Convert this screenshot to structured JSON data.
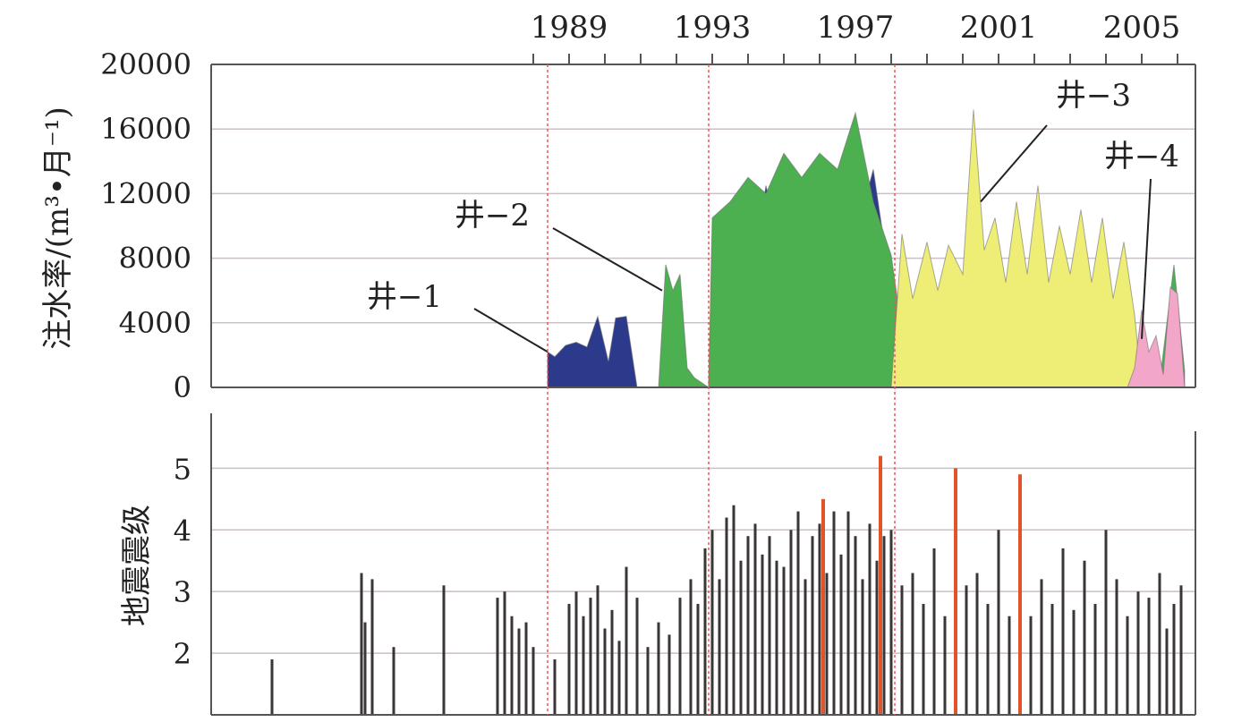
{
  "chart_data": [
    {
      "type": "area",
      "ylabel": "注水率/(m³•月⁻¹)",
      "xlabel": "",
      "x_ticks": [
        "1989",
        "1993",
        "1997",
        "2001",
        "2005"
      ],
      "ylim": [
        0,
        20000
      ],
      "yticks": [
        "0",
        "4000",
        "8000",
        "12000",
        "16000",
        "20000"
      ],
      "grid": true,
      "event_lines": [
        1988.4,
        1992.9,
        1998.1
      ],
      "series": [
        {
          "name": "井−1",
          "color": "#2b3a8a",
          "x": [
            1988.4,
            1988.6,
            1988.9,
            1989.2,
            1989.5,
            1989.8,
            1990.1,
            1990.3,
            1990.6,
            1990.9,
            1991.1,
            1991.4,
            1991.6,
            1991.7,
            1991.8,
            1991.9,
            1992.1,
            1992.3,
            1992.4,
            1992.9,
            1993.0,
            1993.3,
            1993.6,
            1993.9,
            1994.2,
            1994.5,
            1994.8,
            1995.1,
            1995.4,
            1995.7,
            1996.0,
            1996.3,
            1996.6,
            1996.9,
            1997.2,
            1997.5,
            1997.8,
            1998.1,
            1998.3,
            1998.6,
            1998.9,
            1999.2,
            1999.5,
            1999.8,
            2000.1,
            2000.4,
            2000.7,
            2001.0,
            2001.3
          ],
          "values": [
            2200,
            1900,
            2600,
            2800,
            2500,
            4400,
            1600,
            4300,
            4400,
            0,
            0,
            0,
            0,
            5000,
            6800,
            4500,
            800,
            0,
            0,
            0,
            9300,
            10000,
            9000,
            12000,
            8000,
            12500,
            9500,
            13000,
            11000,
            12800,
            10000,
            13500,
            11000,
            14500,
            11000,
            13500,
            9000,
            1500,
            2500,
            1200,
            3000,
            800,
            2200,
            600,
            2800,
            400,
            1500,
            200,
            0
          ]
        },
        {
          "name": "井−2",
          "color": "#4caf50",
          "x": [
            1988.4,
            1989.0,
            1990.0,
            1991.0,
            1991.5,
            1991.7,
            1991.9,
            1992.1,
            1992.3,
            1992.5,
            1992.7,
            1992.9,
            1993.0,
            1993.5,
            1994.0,
            1994.5,
            1995.0,
            1995.5,
            1996.0,
            1996.5,
            1997.0,
            1997.5,
            1998.0,
            1998.3,
            1998.6,
            1999.0,
            1999.5,
            2000.0,
            2000.5,
            2001.0,
            2001.5,
            2002.0,
            2002.5,
            2003.0,
            2003.5,
            2004.0,
            2004.5,
            2005.0,
            2005.5,
            2005.9,
            2006.2
          ],
          "values": [
            0,
            0,
            0,
            0,
            0,
            7600,
            6000,
            7000,
            1200,
            600,
            300,
            0,
            10500,
            11500,
            13000,
            12000,
            14500,
            13000,
            14500,
            13500,
            17000,
            11500,
            8200,
            3500,
            4500,
            3000,
            4500,
            3500,
            2500,
            1500,
            1200,
            1800,
            700,
            600,
            800,
            600,
            500,
            700,
            300,
            7600,
            1000
          ]
        },
        {
          "name": "井−3",
          "color": "#eeee77",
          "x": [
            1998.0,
            1998.3,
            1998.6,
            1999.0,
            1999.3,
            1999.6,
            2000.0,
            2000.3,
            2000.6,
            2000.9,
            2001.2,
            2001.5,
            2001.8,
            2002.1,
            2002.4,
            2002.7,
            2003.0,
            2003.3,
            2003.6,
            2003.9,
            2004.2,
            2004.5,
            2004.8,
            2005.0
          ],
          "values": [
            0,
            9500,
            5500,
            9000,
            6000,
            8800,
            7000,
            17200,
            8500,
            10500,
            6500,
            11500,
            7000,
            12500,
            6500,
            10000,
            7000,
            11000,
            6500,
            10500,
            5500,
            9000,
            4500,
            0
          ]
        },
        {
          "name": "井−4",
          "color": "#f2a6c8",
          "x": [
            2004.6,
            2004.8,
            2005.0,
            2005.2,
            2005.4,
            2005.6,
            2005.8,
            2006.0,
            2006.2
          ],
          "values": [
            0,
            1200,
            4800,
            2200,
            3200,
            800,
            6200,
            5800,
            0
          ]
        }
      ]
    },
    {
      "type": "bar",
      "ylabel": "地震震级",
      "xlabel": "",
      "ylim": [
        1.0,
        5.6
      ],
      "yticks": [
        "2",
        "3",
        "4",
        "5"
      ],
      "grid": true,
      "event_lines": [
        1988.4,
        1992.9,
        1998.1
      ],
      "series": [
        {
          "name": "",
          "color": "#3a3634",
          "x": [
            1980.7,
            1983.2,
            1983.3,
            1983.5,
            1984.1,
            1985.5,
            1987.0,
            1987.2,
            1987.4,
            1987.6,
            1987.8,
            1988.0,
            1988.6,
            1989.0,
            1989.2,
            1989.4,
            1989.6,
            1989.8,
            1990.0,
            1990.2,
            1990.4,
            1990.6,
            1990.9,
            1991.2,
            1991.5,
            1991.8,
            1992.1,
            1992.4,
            1992.6,
            1992.8,
            1993.0,
            1993.2,
            1993.4,
            1993.6,
            1993.8,
            1994.0,
            1994.2,
            1994.4,
            1994.6,
            1994.8,
            1995.0,
            1995.2,
            1995.4,
            1995.6,
            1995.8,
            1996.0,
            1996.2,
            1996.4,
            1996.6,
            1996.8,
            1997.0,
            1997.2,
            1997.4,
            1997.6,
            1997.8,
            1998.0,
            1998.3,
            1998.6,
            1998.9,
            1999.2,
            1999.5,
            1999.8,
            2000.1,
            2000.4,
            2000.7,
            2001.0,
            2001.3,
            2001.6,
            2001.9,
            2002.2,
            2002.5,
            2002.8,
            2003.1,
            2003.4,
            2003.7,
            2004.0,
            2004.3,
            2004.6,
            2004.9,
            2005.2,
            2005.5,
            2005.7,
            2005.9,
            2006.1
          ],
          "values": [
            1.9,
            3.3,
            2.5,
            3.2,
            2.1,
            3.1,
            2.9,
            3.0,
            2.6,
            2.4,
            2.5,
            2.1,
            1.9,
            2.8,
            3.0,
            2.6,
            2.9,
            3.1,
            2.4,
            2.7,
            2.2,
            3.4,
            2.9,
            2.1,
            2.5,
            2.3,
            2.9,
            3.2,
            2.8,
            3.7,
            4.0,
            3.2,
            4.2,
            4.4,
            3.5,
            3.9,
            4.1,
            3.6,
            3.9,
            3.5,
            3.4,
            4.0,
            4.3,
            3.2,
            3.9,
            4.1,
            3.3,
            4.3,
            3.6,
            4.3,
            3.9,
            3.2,
            4.1,
            3.5,
            3.9,
            4.0,
            3.1,
            3.3,
            2.8,
            3.7,
            2.6,
            3.9,
            3.1,
            3.3,
            2.8,
            4.0,
            2.6,
            3.0,
            2.6,
            3.2,
            2.8,
            3.7,
            2.7,
            3.5,
            2.8,
            4.0,
            3.2,
            2.6,
            3.0,
            2.9,
            3.3,
            2.4,
            2.8,
            3.1
          ]
        },
        {
          "name": "",
          "color": "#e0532b",
          "x": [
            1996.1,
            1997.7,
            1999.8,
            2001.6
          ],
          "values": [
            4.5,
            5.2,
            5.0,
            4.9
          ]
        }
      ]
    }
  ]
}
